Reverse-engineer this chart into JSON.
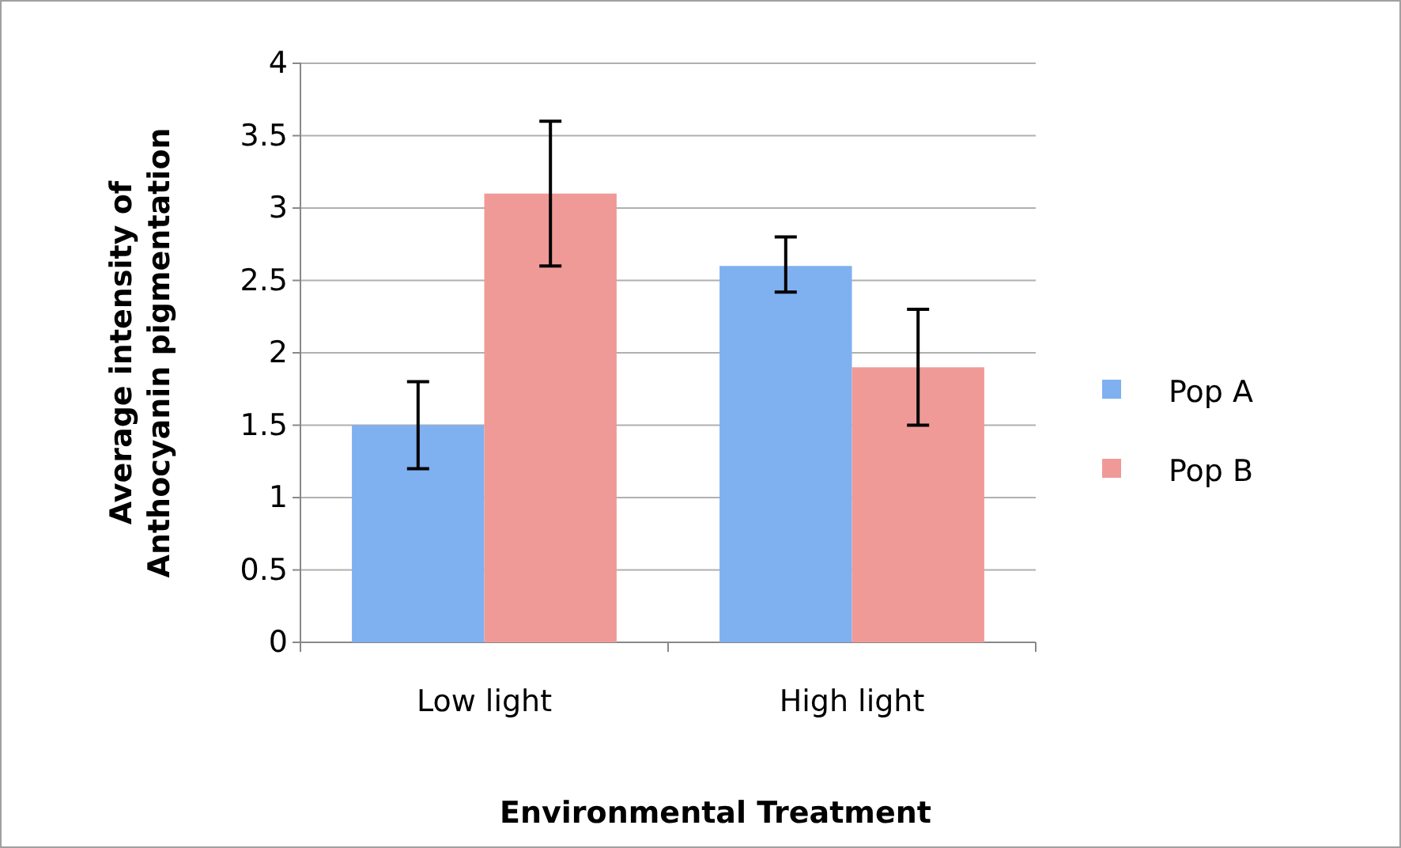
{
  "chart_data": {
    "type": "bar",
    "xlabel": "Environmental Treatment",
    "ylabel": "Average intensity of Anthocyanin pigmentation",
    "categories": [
      "Low light",
      "High light"
    ],
    "series": [
      {
        "name": "Pop A",
        "color": "#7fb0f0",
        "values": [
          1.5,
          2.6
        ],
        "errors": [
          [
            1.2,
            1.8
          ],
          [
            2.42,
            2.8
          ]
        ]
      },
      {
        "name": "Pop B",
        "color": "#f09a98",
        "values": [
          3.1,
          1.9
        ],
        "errors": [
          [
            2.6,
            3.6
          ],
          [
            1.5,
            2.3
          ]
        ]
      }
    ],
    "ylim": [
      0,
      4
    ],
    "yticks": [
      0,
      0.5,
      1,
      1.5,
      2,
      2.5,
      3,
      3.5,
      4
    ],
    "grid": "y",
    "legend": "right"
  }
}
